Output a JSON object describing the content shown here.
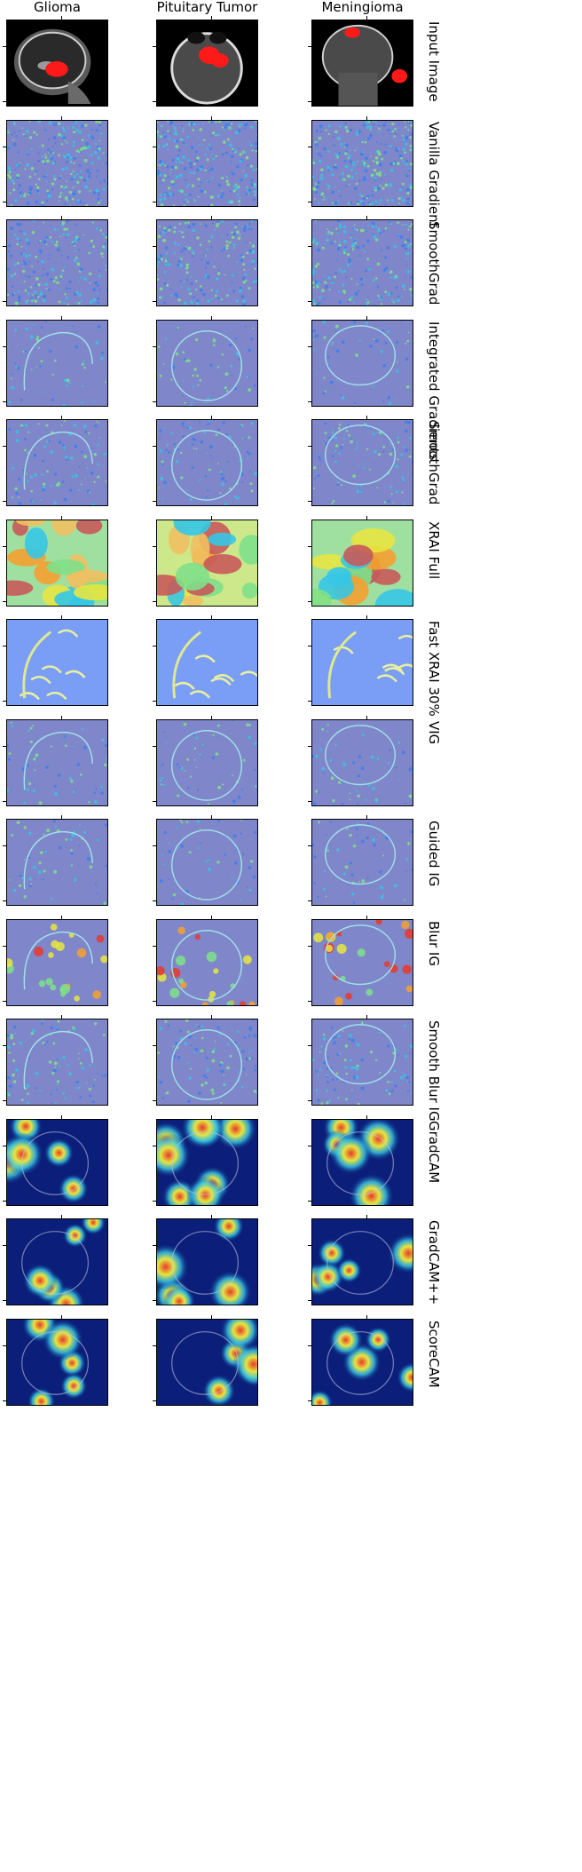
{
  "columns": [
    {
      "label": "Glioma"
    },
    {
      "label": "Pituitary Tumor"
    },
    {
      "label": "Meningioma"
    }
  ],
  "rows": [
    {
      "label": "Input Image",
      "style": "mri"
    },
    {
      "label": "Vanilla Gradient",
      "style": "noise-heavy"
    },
    {
      "label": "SmoothGrad",
      "style": "noise"
    },
    {
      "label": "Integrated Gradients",
      "style": "edges"
    },
    {
      "label": "SmoothGrad",
      "style": "edges-noise"
    },
    {
      "label": "XRAI Full",
      "style": "xrai"
    },
    {
      "label": "Fast XRAI 30%",
      "style": "xrai-fast"
    },
    {
      "label": "VIG",
      "style": "edges"
    },
    {
      "label": "Guided IG",
      "style": "edges"
    },
    {
      "label": "Blur IG",
      "style": "blur"
    },
    {
      "label": "Smooth Blur IG",
      "style": "edges-noise"
    },
    {
      "label": "GradCAM",
      "style": "cam"
    },
    {
      "label": "GradCAM++",
      "style": "cam"
    },
    {
      "label": "ScoreCAM",
      "style": "cam"
    }
  ],
  "colors": {
    "attribution_background": "#7f86c9",
    "mri_background": "#000000",
    "tumor_mask": "#ff1a1a",
    "cam_background": "#0b1f7a"
  }
}
